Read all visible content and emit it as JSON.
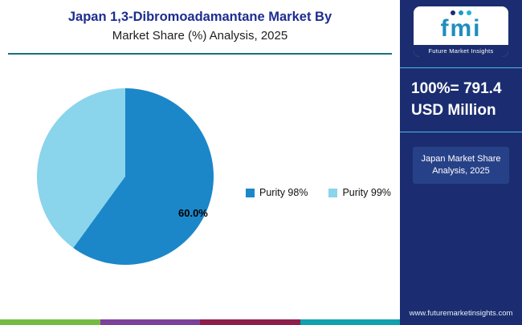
{
  "header": {
    "title_line1": "Japan 1,3-Dibromoadamantane Market By",
    "title_line2": "Market Share (%) Analysis, 2025"
  },
  "chart_data": {
    "type": "pie",
    "title": "Japan 1,3-Dibromoadamantane Market By Market Share (%) Analysis, 2025",
    "slices": [
      {
        "label": "Purity 98%",
        "value": 60.0,
        "color": "#1b87c9"
      },
      {
        "label": "Purity 99%",
        "value": 40.0,
        "color": "#8ad4ec"
      }
    ],
    "data_label": "60.0%",
    "legend_position": "right"
  },
  "sidebar": {
    "bg_color": "#1b2d70",
    "logo": {
      "word": "fmi",
      "caption": "Future Market Insights",
      "people_colors": [
        "#1b2d70",
        "#2196c4",
        "#23b1d8"
      ]
    },
    "headline_line1": "100%= 791.4",
    "headline_line2": "USD Million",
    "tag_line1": "Japan Market Share",
    "tag_line2": "Analysis, 2025",
    "website": "www.futuremarketinsights.com"
  },
  "accents": {
    "header_rule_color": "#196f7c",
    "divider_color": "#4fb9dd"
  },
  "footer_strip": {
    "colors": [
      "#76bc43",
      "#7d4199",
      "#8e1f4c",
      "#11a0ad"
    ]
  }
}
